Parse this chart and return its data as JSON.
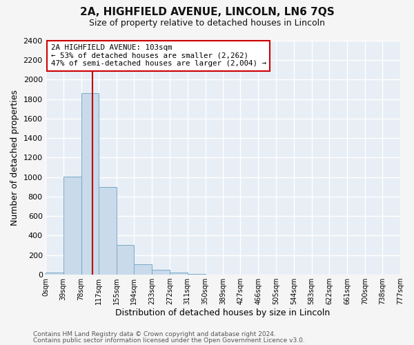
{
  "title": "2A, HIGHFIELD AVENUE, LINCOLN, LN6 7QS",
  "subtitle": "Size of property relative to detached houses in Lincoln",
  "xlabel": "Distribution of detached houses by size in Lincoln",
  "ylabel": "Number of detached properties",
  "bar_color": "#c9daea",
  "bar_edge_color": "#7aaac8",
  "bg_color": "#e8eef5",
  "grid_color": "#ffffff",
  "annotation_box_edge": "#cc0000",
  "vline_color": "#bb0000",
  "annotation_line1": "2A HIGHFIELD AVENUE: 103sqm",
  "annotation_line2": "← 53% of detached houses are smaller (2,262)",
  "annotation_line3": "47% of semi-detached houses are larger (2,004) →",
  "property_size": 103,
  "footer1": "Contains HM Land Registry data © Crown copyright and database right 2024.",
  "footer2": "Contains public sector information licensed under the Open Government Licence v3.0.",
  "bin_edges": [
    0,
    39,
    78,
    117,
    155,
    194,
    233,
    272,
    311,
    350,
    389,
    427,
    466,
    505,
    544,
    583,
    622,
    661,
    700,
    738,
    777
  ],
  "bin_labels": [
    "0sqm",
    "39sqm",
    "78sqm",
    "117sqm",
    "155sqm",
    "194sqm",
    "233sqm",
    "272sqm",
    "311sqm",
    "350sqm",
    "389sqm",
    "427sqm",
    "466sqm",
    "505sqm",
    "544sqm",
    "583sqm",
    "622sqm",
    "661sqm",
    "700sqm",
    "738sqm",
    "777sqm"
  ],
  "bar_heights": [
    20,
    1005,
    1860,
    895,
    305,
    105,
    45,
    20,
    5,
    0,
    0,
    0,
    0,
    0,
    0,
    0,
    0,
    0,
    0,
    0
  ],
  "ylim": [
    0,
    2400
  ],
  "yticks": [
    0,
    200,
    400,
    600,
    800,
    1000,
    1200,
    1400,
    1600,
    1800,
    2000,
    2200,
    2400
  ],
  "fig_bg": "#f5f5f5"
}
